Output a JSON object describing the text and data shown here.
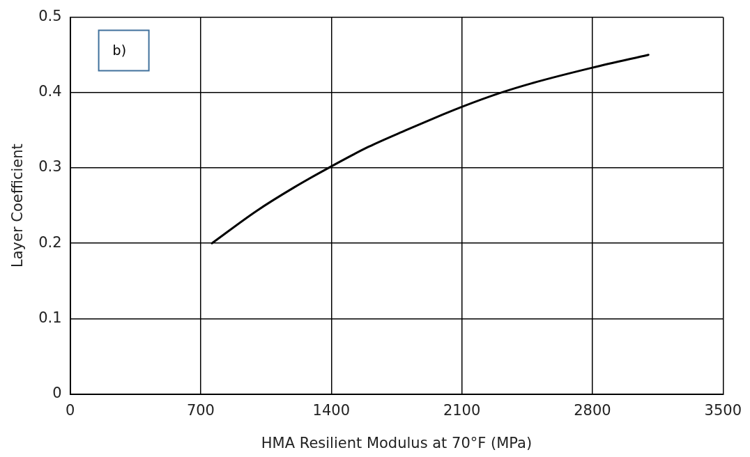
{
  "chart_data": {
    "type": "line",
    "xlabel": "HMA Resilient Modulus at 70°F (MPa)",
    "ylabel": "Layer Coefficient",
    "annotations": [
      "b)"
    ],
    "x": [
      760,
      1000,
      1200,
      1400,
      1600,
      1800,
      2000,
      2100,
      2300,
      2500,
      2800,
      3100
    ],
    "series": [
      {
        "color": "#000000",
        "values": [
          0.2,
          0.243,
          0.274,
          0.302,
          0.328,
          0.35,
          0.371,
          0.381,
          0.399,
          0.414,
          0.433,
          0.45
        ]
      }
    ],
    "xlim": [
      0,
      3500
    ],
    "xticks": [
      0,
      700,
      1400,
      2100,
      2800,
      3500
    ],
    "ylim": [
      0,
      0.5
    ],
    "yticks": [
      0,
      0.1,
      0.2,
      0.3,
      0.4,
      0.5
    ],
    "grid": true,
    "marker": "none",
    "line_style": "solid",
    "legend": false
  }
}
